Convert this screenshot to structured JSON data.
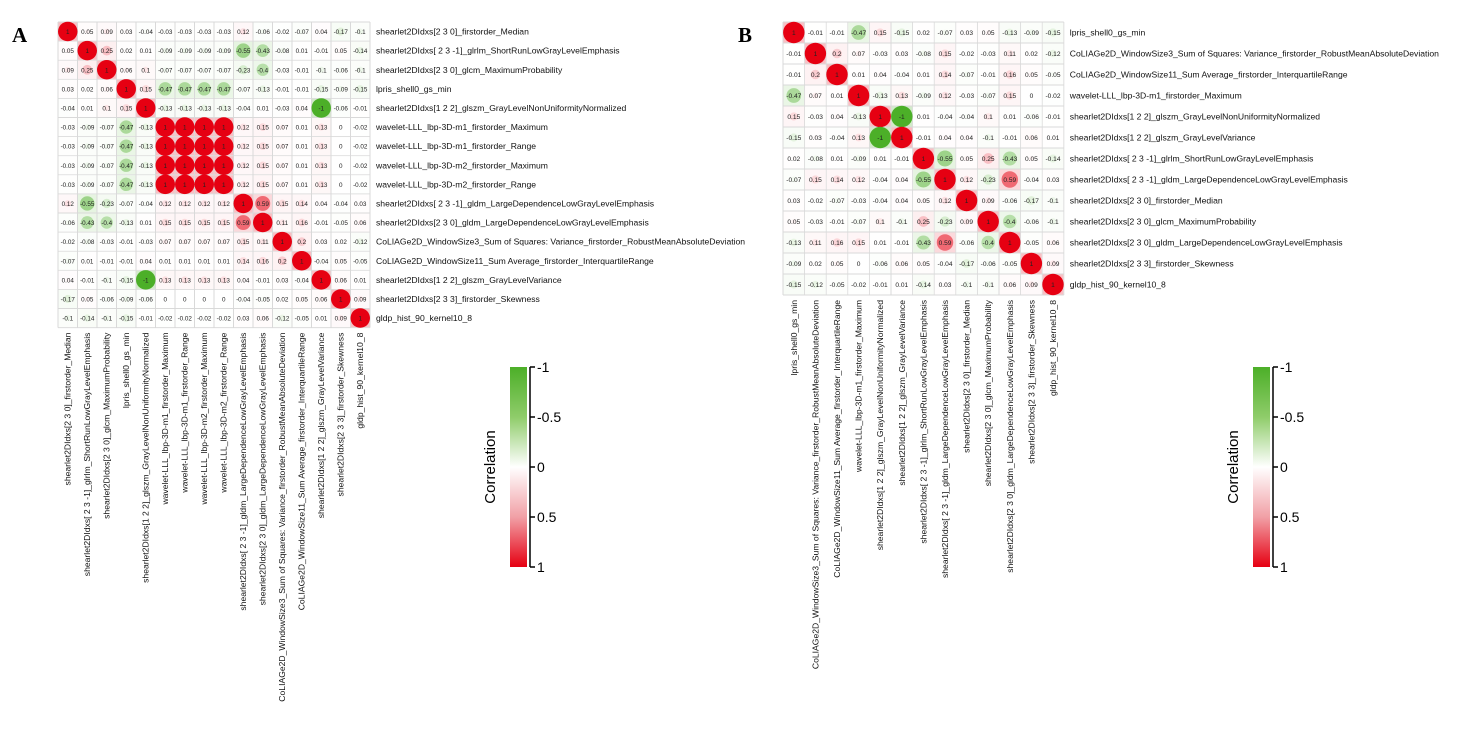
{
  "colors": {
    "negative": "#4caf28",
    "zero": "#ffffff",
    "positive": "#e60012",
    "grid": "#d9d9d9"
  },
  "chart_data": [
    {
      "type": "heatmap",
      "panel_label": "A",
      "colorbar": {
        "label": "Correlation",
        "ticks": [
          "-1",
          "-0.5",
          "0",
          "0.5",
          "1"
        ],
        "range": [
          -1,
          1
        ]
      },
      "labels": [
        "shearlet2DIdxs[2 3 0]_firstorder_Median",
        "shearlet2DIdxs[ 2  3 -1]_glrlm_ShortRunLowGrayLevelEmphasis",
        "shearlet2DIdxs[2 3 0]_glcm_MaximumProbability",
        "lpris_shell0_gs_min",
        "shearlet2DIdxs[1 2 2]_glszm_GrayLevelNonUniformityNormalized",
        "wavelet-LLL_lbp-3D-m1_firstorder_Maximum",
        "wavelet-LLL_lbp-3D-m1_firstorder_Range",
        "wavelet-LLL_lbp-3D-m2_firstorder_Maximum",
        "wavelet-LLL_lbp-3D-m2_firstorder_Range",
        "shearlet2DIdxs[ 2  3 -1]_gldm_LargeDependenceLowGrayLevelEmphasis",
        "shearlet2DIdxs[2 3 0]_gldm_LargeDependenceLowGrayLevelEmphasis",
        "CoLIAGe2D_WindowSize3_Sum of Squares: Variance_firstorder_RobustMeanAbsoluteDeviation",
        "CoLIAGe2D_WindowSize11_Sum Average_firstorder_InterquartileRange",
        "shearlet2DIdxs[1 2 2]_glszm_GrayLevelVariance",
        "shearlet2DIdxs[2 3 3]_firstorder_Skewness",
        "gldp_hist_90_kernel10_8"
      ],
      "matrix": [
        [
          "1",
          "0.05",
          "0.09",
          "0.03",
          "-0.04",
          "-0.03",
          "-0.03",
          "-0.03",
          "-0.03",
          "0.12",
          "-0.06",
          "-0.02",
          "-0.07",
          "0.04",
          "-0.17",
          "-0.1"
        ],
        [
          "0.05",
          "1",
          "0.25",
          "0.02",
          "0.01",
          "-0.09",
          "-0.09",
          "-0.09",
          "-0.09",
          "-0.55",
          "-0.43",
          "-0.08",
          "0.01",
          "-0.01",
          "0.05",
          "-0.14"
        ],
        [
          "0.09",
          "0.25",
          "1",
          "0.06",
          "0.1",
          "-0.07",
          "-0.07",
          "-0.07",
          "-0.07",
          "-0.23",
          "-0.4",
          "-0.03",
          "-0.01",
          "-0.1",
          "-0.06",
          "-0.1"
        ],
        [
          "0.03",
          "0.02",
          "0.06",
          "1",
          "0.15",
          "-0.47",
          "-0.47",
          "-0.47",
          "-0.47",
          "-0.07",
          "-0.13",
          "-0.01",
          "-0.01",
          "-0.15",
          "-0.09",
          "-0.15"
        ],
        [
          "-0.04",
          "0.01",
          "0.1",
          "0.15",
          "1",
          "-0.13",
          "-0.13",
          "-0.13",
          "-0.13",
          "-0.04",
          "0.01",
          "-0.03",
          "0.04",
          "-1",
          "-0.06",
          "-0.01"
        ],
        [
          "-0.03",
          "-0.09",
          "-0.07",
          "-0.47",
          "-0.13",
          "1",
          "1",
          "1",
          "1",
          "0.12",
          "0.15",
          "0.07",
          "0.01",
          "0.13",
          "0",
          "-0.02"
        ],
        [
          "-0.03",
          "-0.09",
          "-0.07",
          "-0.47",
          "-0.13",
          "1",
          "1",
          "1",
          "1",
          "0.12",
          "0.15",
          "0.07",
          "0.01",
          "0.13",
          "0",
          "-0.02"
        ],
        [
          "-0.03",
          "-0.09",
          "-0.07",
          "-0.47",
          "-0.13",
          "1",
          "1",
          "1",
          "1",
          "0.12",
          "0.15",
          "0.07",
          "0.01",
          "0.13",
          "0",
          "-0.02"
        ],
        [
          "-0.03",
          "-0.09",
          "-0.07",
          "-0.47",
          "-0.13",
          "1",
          "1",
          "1",
          "1",
          "0.12",
          "0.15",
          "0.07",
          "0.01",
          "0.13",
          "0",
          "-0.02"
        ],
        [
          "0.12",
          "-0.55",
          "-0.23",
          "-0.07",
          "-0.04",
          "0.12",
          "0.12",
          "0.12",
          "0.12",
          "1",
          "0.59",
          "0.15",
          "0.14",
          "0.04",
          "-0.04",
          "0.03"
        ],
        [
          "-0.06",
          "-0.43",
          "-0.4",
          "-0.13",
          "0.01",
          "0.15",
          "0.15",
          "0.15",
          "0.15",
          "0.59",
          "1",
          "0.11",
          "0.16",
          "-0.01",
          "-0.05",
          "0.06"
        ],
        [
          "-0.02",
          "-0.08",
          "-0.03",
          "-0.01",
          "-0.03",
          "0.07",
          "0.07",
          "0.07",
          "0.07",
          "0.15",
          "0.11",
          "1",
          "0.2",
          "0.03",
          "0.02",
          "-0.12"
        ],
        [
          "-0.07",
          "0.01",
          "-0.01",
          "-0.01",
          "0.04",
          "0.01",
          "0.01",
          "0.01",
          "0.01",
          "0.14",
          "0.16",
          "0.2",
          "1",
          "-0.04",
          "0.05",
          "-0.05"
        ],
        [
          "0.04",
          "-0.01",
          "-0.1",
          "-0.15",
          "-1",
          "0.13",
          "0.13",
          "0.13",
          "0.13",
          "0.04",
          "-0.01",
          "0.03",
          "-0.04",
          "1",
          "0.06",
          "0.01"
        ],
        [
          "-0.17",
          "0.05",
          "-0.06",
          "-0.09",
          "-0.06",
          "0",
          "0",
          "0",
          "0",
          "-0.04",
          "-0.05",
          "0.02",
          "0.05",
          "0.06",
          "1",
          "0.09"
        ],
        [
          "-0.1",
          "-0.14",
          "-0.1",
          "-0.15",
          "-0.01",
          "-0.02",
          "-0.02",
          "-0.02",
          "-0.02",
          "0.03",
          "0.06",
          "-0.12",
          "-0.05",
          "0.01",
          "0.09",
          "1"
        ]
      ]
    },
    {
      "type": "heatmap",
      "panel_label": "B",
      "colorbar": {
        "label": "Correlation",
        "ticks": [
          "-1",
          "-0.5",
          "0",
          "0.5",
          "1"
        ],
        "range": [
          -1,
          1
        ]
      },
      "labels": [
        "lpris_shell0_gs_min",
        "CoLIAGe2D_WindowSize3_Sum of Squares: Variance_firstorder_RobustMeanAbsoluteDeviation",
        "CoLIAGe2D_WindowSize11_Sum Average_firstorder_InterquartileRange",
        "wavelet-LLL_lbp-3D-m1_firstorder_Maximum",
        "shearlet2DIdxs[1 2 2]_glszm_GrayLevelNonUniformityNormalized",
        "shearlet2DIdxs[1 2 2]_glszm_GrayLevelVariance",
        "shearlet2DIdxs[ 2  3 -1]_glrlm_ShortRunLowGrayLevelEmphasis",
        "shearlet2DIdxs[ 2  3 -1]_gldm_LargeDependenceLowGrayLevelEmphasis",
        "shearlet2DIdxs[2 3 0]_firstorder_Median",
        "shearlet2DIdxs[2 3 0]_glcm_MaximumProbability",
        "shearlet2DIdxs[2 3 0]_gldm_LargeDependenceLowGrayLevelEmphasis",
        "shearlet2DIdxs[2 3 3]_firstorder_Skewness",
        "gldp_hist_90_kernel10_8"
      ],
      "matrix": [
        [
          "1",
          "-0.01",
          "-0.01",
          "-0.47",
          "0.15",
          "-0.15",
          "0.02",
          "-0.07",
          "0.03",
          "0.05",
          "-0.13",
          "-0.09",
          "-0.15"
        ],
        [
          "-0.01",
          "1",
          "0.2",
          "0.07",
          "-0.03",
          "0.03",
          "-0.08",
          "0.15",
          "-0.02",
          "-0.03",
          "0.11",
          "0.02",
          "-0.12"
        ],
        [
          "-0.01",
          "0.2",
          "1",
          "0.01",
          "0.04",
          "-0.04",
          "0.01",
          "0.14",
          "-0.07",
          "-0.01",
          "0.16",
          "0.05",
          "-0.05"
        ],
        [
          "-0.47",
          "0.07",
          "0.01",
          "1",
          "-0.13",
          "0.13",
          "-0.09",
          "0.12",
          "-0.03",
          "-0.07",
          "0.15",
          "0",
          "-0.02"
        ],
        [
          "0.15",
          "-0.03",
          "0.04",
          "-0.13",
          "1",
          "-1",
          "0.01",
          "-0.04",
          "-0.04",
          "0.1",
          "0.01",
          "-0.06",
          "-0.01"
        ],
        [
          "-0.15",
          "0.03",
          "-0.04",
          "0.13",
          "-1",
          "1",
          "-0.01",
          "0.04",
          "0.04",
          "-0.1",
          "-0.01",
          "0.06",
          "0.01"
        ],
        [
          "0.02",
          "-0.08",
          "0.01",
          "-0.09",
          "0.01",
          "-0.01",
          "1",
          "-0.55",
          "0.05",
          "0.25",
          "-0.43",
          "0.05",
          "-0.14"
        ],
        [
          "-0.07",
          "0.15",
          "0.14",
          "0.12",
          "-0.04",
          "0.04",
          "-0.55",
          "1",
          "0.12",
          "-0.23",
          "0.59",
          "-0.04",
          "0.03"
        ],
        [
          "0.03",
          "-0.02",
          "-0.07",
          "-0.03",
          "-0.04",
          "0.04",
          "0.05",
          "0.12",
          "1",
          "0.09",
          "-0.06",
          "-0.17",
          "-0.1"
        ],
        [
          "0.05",
          "-0.03",
          "-0.01",
          "-0.07",
          "0.1",
          "-0.1",
          "0.25",
          "-0.23",
          "0.09",
          "1",
          "-0.4",
          "-0.06",
          "-0.1"
        ],
        [
          "-0.13",
          "0.11",
          "0.16",
          "0.15",
          "0.01",
          "-0.01",
          "-0.43",
          "0.59",
          "-0.06",
          "-0.4",
          "1",
          "-0.05",
          "0.06"
        ],
        [
          "-0.09",
          "0.02",
          "0.05",
          "0",
          "-0.06",
          "0.06",
          "0.05",
          "-0.04",
          "-0.17",
          "-0.06",
          "-0.05",
          "1",
          "0.09"
        ],
        [
          "-0.15",
          "-0.12",
          "-0.05",
          "-0.02",
          "-0.01",
          "0.01",
          "-0.14",
          "0.03",
          "-0.1",
          "-0.1",
          "0.06",
          "0.09",
          "1"
        ]
      ]
    }
  ]
}
